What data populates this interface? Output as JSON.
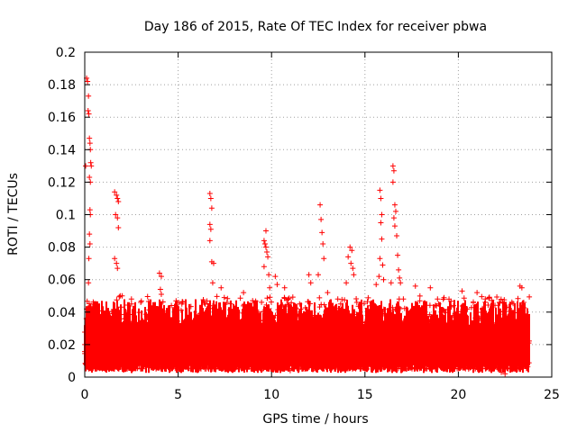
{
  "chart_data": {
    "type": "scatter",
    "title": "Day 186 of 2015, Rate Of TEC Index for receiver pbwa",
    "xlabel": "GPS time / hours",
    "ylabel": "ROTI / TECUs",
    "xlim": [
      0,
      25
    ],
    "ylim": [
      0,
      0.2
    ],
    "x_ticks": [
      "0",
      "5",
      "10",
      "15",
      "20",
      "25"
    ],
    "y_ticks": [
      "0",
      "0.02",
      "0.04",
      "0.06",
      "0.08",
      "0.1",
      "0.12",
      "0.14",
      "0.16",
      "0.18",
      "0.2"
    ],
    "x_tick_values": [
      0,
      5,
      10,
      15,
      20,
      25
    ],
    "y_tick_values": [
      0,
      0.02,
      0.04,
      0.06,
      0.08,
      0.1,
      0.12,
      0.14,
      0.16,
      0.18,
      0.2
    ],
    "grid": true,
    "marker": "plus",
    "color": "#ff0000",
    "x_range_of_data": [
      0,
      23.8
    ],
    "background_band": {
      "low": 0.005,
      "high": 0.04
    },
    "series": [
      {
        "name": "ROTI",
        "points": [
          [
            0.1,
            0.184
          ],
          [
            0.15,
            0.182
          ],
          [
            0.2,
            0.173
          ],
          [
            0.18,
            0.164
          ],
          [
            0.22,
            0.162
          ],
          [
            0.25,
            0.147
          ],
          [
            0.28,
            0.144
          ],
          [
            0.3,
            0.14
          ],
          [
            0.05,
            0.13
          ],
          [
            0.32,
            0.132
          ],
          [
            0.35,
            0.13
          ],
          [
            0.25,
            0.123
          ],
          [
            0.3,
            0.12
          ],
          [
            0.28,
            0.103
          ],
          [
            0.3,
            0.1
          ],
          [
            0.25,
            0.088
          ],
          [
            0.28,
            0.082
          ],
          [
            0.22,
            0.073
          ],
          [
            0.2,
            0.058
          ],
          [
            0.1,
            0.042
          ],
          [
            1.6,
            0.114
          ],
          [
            1.7,
            0.112
          ],
          [
            1.75,
            0.11
          ],
          [
            1.8,
            0.108
          ],
          [
            1.65,
            0.1
          ],
          [
            1.75,
            0.098
          ],
          [
            1.8,
            0.092
          ],
          [
            1.6,
            0.073
          ],
          [
            1.7,
            0.07
          ],
          [
            1.75,
            0.067
          ],
          [
            1.9,
            0.05
          ],
          [
            2.0,
            0.05
          ],
          [
            4.0,
            0.064
          ],
          [
            4.1,
            0.062
          ],
          [
            4.05,
            0.054
          ],
          [
            4.1,
            0.051
          ],
          [
            6.7,
            0.113
          ],
          [
            6.75,
            0.11
          ],
          [
            6.8,
            0.104
          ],
          [
            6.7,
            0.094
          ],
          [
            6.75,
            0.091
          ],
          [
            6.7,
            0.084
          ],
          [
            6.8,
            0.071
          ],
          [
            6.9,
            0.07
          ],
          [
            6.85,
            0.058
          ],
          [
            9.7,
            0.09
          ],
          [
            9.6,
            0.084
          ],
          [
            9.65,
            0.082
          ],
          [
            9.7,
            0.08
          ],
          [
            9.75,
            0.077
          ],
          [
            9.8,
            0.074
          ],
          [
            9.6,
            0.068
          ],
          [
            9.85,
            0.063
          ],
          [
            9.9,
            0.055
          ],
          [
            10.2,
            0.062
          ],
          [
            10.3,
            0.057
          ],
          [
            10.7,
            0.055
          ],
          [
            12.0,
            0.063
          ],
          [
            12.1,
            0.058
          ],
          [
            12.6,
            0.106
          ],
          [
            12.65,
            0.097
          ],
          [
            12.7,
            0.089
          ],
          [
            12.75,
            0.082
          ],
          [
            12.8,
            0.073
          ],
          [
            12.5,
            0.063
          ],
          [
            13.0,
            0.052
          ],
          [
            14.2,
            0.08
          ],
          [
            14.3,
            0.078
          ],
          [
            14.1,
            0.074
          ],
          [
            14.25,
            0.07
          ],
          [
            14.35,
            0.067
          ],
          [
            14.4,
            0.063
          ],
          [
            14.0,
            0.058
          ],
          [
            15.8,
            0.115
          ],
          [
            15.85,
            0.11
          ],
          [
            15.9,
            0.1
          ],
          [
            15.85,
            0.095
          ],
          [
            15.9,
            0.085
          ],
          [
            15.8,
            0.073
          ],
          [
            15.95,
            0.069
          ],
          [
            15.75,
            0.062
          ],
          [
            16.0,
            0.06
          ],
          [
            15.6,
            0.057
          ],
          [
            16.5,
            0.13
          ],
          [
            16.55,
            0.127
          ],
          [
            16.5,
            0.12
          ],
          [
            16.6,
            0.106
          ],
          [
            16.65,
            0.102
          ],
          [
            16.55,
            0.098
          ],
          [
            16.6,
            0.093
          ],
          [
            16.7,
            0.087
          ],
          [
            16.75,
            0.075
          ],
          [
            16.8,
            0.066
          ],
          [
            16.85,
            0.061
          ],
          [
            16.9,
            0.058
          ],
          [
            16.4,
            0.058
          ],
          [
            17.7,
            0.056
          ],
          [
            18.5,
            0.055
          ],
          [
            20.2,
            0.053
          ],
          [
            21.0,
            0.052
          ],
          [
            23.3,
            0.056
          ],
          [
            23.4,
            0.055
          ],
          [
            23.5,
            0.046
          ],
          [
            22.6,
            0.043
          ],
          [
            22.2,
            0.046
          ],
          [
            19.5,
            0.048
          ],
          [
            11.5,
            0.045
          ],
          [
            8.5,
            0.052
          ],
          [
            7.3,
            0.055
          ],
          [
            5.2,
            0.045
          ],
          [
            3.0,
            0.046
          ],
          [
            2.5,
            0.045
          ],
          [
            0.5,
            0.045
          ],
          [
            11.0,
            0.004
          ],
          [
            22.3,
            0.003
          ],
          [
            22.5,
            0.002
          ],
          [
            13.6,
            0.005
          ],
          [
            6.2,
            0.006
          ]
        ]
      }
    ]
  }
}
